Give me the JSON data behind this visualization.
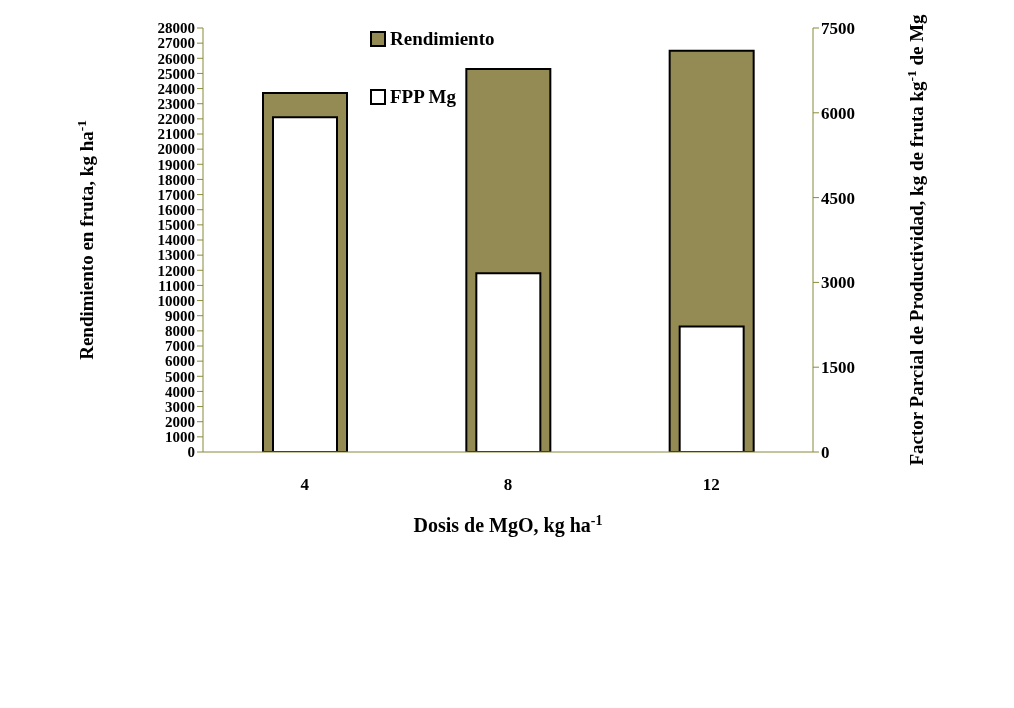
{
  "chart_data": {
    "type": "bar",
    "categories": [
      "4",
      "8",
      "12"
    ],
    "series": [
      {
        "name": "Rendimiento",
        "color": "#948a54",
        "values": [
          23700,
          25300,
          26500
        ]
      },
      {
        "name": "FPP Mg",
        "color": "#ffffff",
        "values": [
          5920,
          3160,
          2220
        ],
        "axis": "y2"
      }
    ],
    "xlabel": "Dosis de MgO, kg ha$^{-1}$",
    "ylabel": "Rendimiento en fruta, kg ha$^{-1}$",
    "y2label": "Factor Parcial de Productividad, kg de fruta kg$^{-1}$ de Mg",
    "ylim": [
      0,
      28000
    ],
    "yticks": [
      0,
      1000,
      2000,
      3000,
      4000,
      5000,
      6000,
      7000,
      8000,
      9000,
      10000,
      11000,
      12000,
      13000,
      14000,
      15000,
      16000,
      17000,
      18000,
      19000,
      20000,
      21000,
      22000,
      23000,
      24000,
      25000,
      26000,
      27000,
      28000
    ],
    "y2lim": [
      0,
      7500
    ],
    "y2ticks": [
      0,
      1500,
      3000,
      4500,
      6000,
      7500
    ],
    "grid": false,
    "legend": "top"
  }
}
